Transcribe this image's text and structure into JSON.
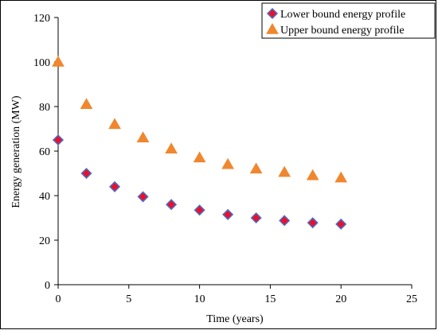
{
  "chart_data": {
    "type": "scatter",
    "title": "",
    "xlabel": "Time (years)",
    "ylabel": "Energy generation (MW)",
    "xlim": [
      0,
      25
    ],
    "ylim": [
      0,
      120
    ],
    "xticks": [
      0,
      5,
      10,
      15,
      20,
      25
    ],
    "yticks": [
      0,
      20,
      40,
      60,
      80,
      100,
      120
    ],
    "grid": false,
    "legend_position": "top-right",
    "series": [
      {
        "name": "Lower bound energy profile",
        "marker": "diamond",
        "fill_color": "#e8112d",
        "edge_color": "#4a6fc7",
        "x": [
          0,
          2,
          4,
          6,
          8,
          10,
          12,
          14,
          16,
          18,
          20
        ],
        "y": [
          65,
          50,
          44,
          39.5,
          36,
          33.5,
          31.5,
          30,
          28.8,
          27.8,
          27.2
        ]
      },
      {
        "name": "Upper bound energy profile",
        "marker": "triangle",
        "fill_color": "#f0872f",
        "edge_color": "#f0872f",
        "x": [
          0,
          2,
          4,
          6,
          8,
          10,
          12,
          14,
          16,
          18,
          20
        ],
        "y": [
          100,
          81,
          72,
          66,
          61,
          57,
          54,
          52,
          50.5,
          49,
          48
        ]
      }
    ]
  }
}
